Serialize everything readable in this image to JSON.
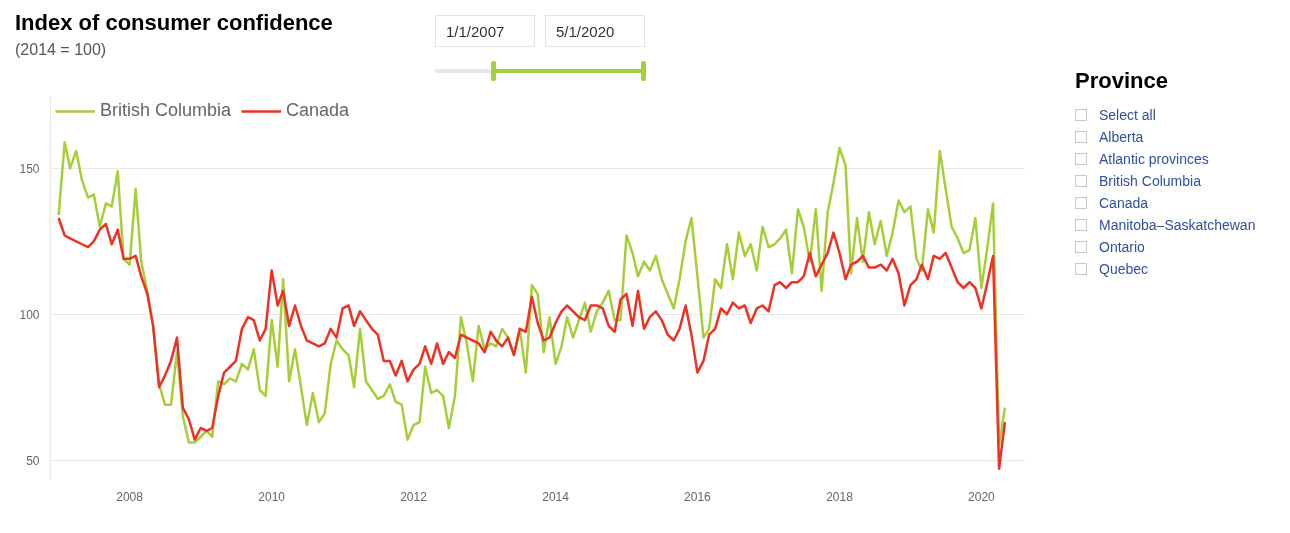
{
  "chart_data": {
    "type": "line",
    "title": "Index of consumer confidence",
    "subtitle": "(2014 = 100)",
    "x": [
      "2007-01",
      "2007-02",
      "2007-03",
      "2007-04",
      "2007-05",
      "2007-06",
      "2007-07",
      "2007-08",
      "2007-09",
      "2007-10",
      "2007-11",
      "2007-12",
      "2008-01",
      "2008-02",
      "2008-03",
      "2008-04",
      "2008-05",
      "2008-06",
      "2008-07",
      "2008-08",
      "2008-09",
      "2008-10",
      "2008-11",
      "2008-12",
      "2009-01",
      "2009-02",
      "2009-03",
      "2009-04",
      "2009-05",
      "2009-06",
      "2009-07",
      "2009-08",
      "2009-09",
      "2009-10",
      "2009-11",
      "2009-12",
      "2010-01",
      "2010-02",
      "2010-03",
      "2010-04",
      "2010-05",
      "2010-06",
      "2010-07",
      "2010-08",
      "2010-09",
      "2010-10",
      "2010-11",
      "2010-12",
      "2011-01",
      "2011-02",
      "2011-03",
      "2011-04",
      "2011-05",
      "2011-06",
      "2011-07",
      "2011-08",
      "2011-09",
      "2011-10",
      "2011-11",
      "2011-12",
      "2012-01",
      "2012-02",
      "2012-03",
      "2012-04",
      "2012-05",
      "2012-06",
      "2012-07",
      "2012-08",
      "2012-09",
      "2012-10",
      "2012-11",
      "2012-12",
      "2013-01",
      "2013-02",
      "2013-03",
      "2013-04",
      "2013-05",
      "2013-06",
      "2013-07",
      "2013-08",
      "2013-09",
      "2013-10",
      "2013-11",
      "2013-12",
      "2014-01",
      "2014-02",
      "2014-03",
      "2014-04",
      "2014-05",
      "2014-06",
      "2014-07",
      "2014-08",
      "2014-09",
      "2014-10",
      "2014-11",
      "2014-12",
      "2015-01",
      "2015-02",
      "2015-03",
      "2015-04",
      "2015-05",
      "2015-06",
      "2015-07",
      "2015-08",
      "2015-09",
      "2015-10",
      "2015-11",
      "2015-12",
      "2016-01",
      "2016-02",
      "2016-03",
      "2016-04",
      "2016-05",
      "2016-06",
      "2016-07",
      "2016-08",
      "2016-09",
      "2016-10",
      "2016-11",
      "2016-12",
      "2017-01",
      "2017-02",
      "2017-03",
      "2017-04",
      "2017-05",
      "2017-06",
      "2017-07",
      "2017-08",
      "2017-09",
      "2017-10",
      "2017-11",
      "2017-12",
      "2018-01",
      "2018-02",
      "2018-03",
      "2018-04",
      "2018-05",
      "2018-06",
      "2018-07",
      "2018-08",
      "2018-09",
      "2018-10",
      "2018-11",
      "2018-12",
      "2019-01",
      "2019-02",
      "2019-03",
      "2019-04",
      "2019-05",
      "2019-06",
      "2019-07",
      "2019-08",
      "2019-09",
      "2019-10",
      "2019-11",
      "2019-12",
      "2020-01",
      "2020-02",
      "2020-03",
      "2020-04",
      "2020-05"
    ],
    "series": [
      {
        "name": "British Columbia",
        "color": "#a6ce39",
        "values": [
          134,
          159,
          150,
          156,
          146,
          140,
          141,
          130,
          138,
          137,
          149,
          119,
          117,
          143,
          118,
          108,
          96,
          76,
          69,
          69,
          87,
          65,
          56,
          56,
          58,
          60,
          58,
          77,
          76,
          78,
          77,
          83,
          81,
          88,
          74,
          72,
          98,
          82,
          112,
          77,
          88,
          75,
          62,
          73,
          63,
          66,
          83,
          91,
          88,
          86,
          75,
          95,
          77,
          74,
          71,
          72,
          76,
          70,
          69,
          57,
          62,
          63,
          82,
          73,
          74,
          72,
          61,
          72,
          99,
          90,
          77,
          96,
          88,
          90,
          89,
          95,
          92,
          86,
          95,
          80,
          110,
          107,
          87,
          99,
          83,
          89,
          99,
          92,
          98,
          104,
          94,
          101,
          104,
          108,
          98,
          98,
          127,
          121,
          113,
          118,
          115,
          120,
          112,
          107,
          102,
          112,
          125,
          133,
          113,
          92,
          95,
          112,
          109,
          124,
          112,
          128,
          120,
          124,
          115,
          130,
          123,
          124,
          126,
          129,
          114,
          136,
          130,
          118,
          136,
          108,
          135,
          145,
          157,
          151,
          114,
          133,
          118,
          135,
          124,
          132,
          120,
          128,
          139,
          135,
          137,
          119,
          115,
          136,
          128,
          156,
          143,
          130,
          126,
          121,
          122,
          133,
          109,
          123,
          138,
          55,
          68
        ]
      },
      {
        "name": "Canada",
        "color": "#ee3124",
        "values": [
          133,
          127,
          126,
          125,
          124,
          123,
          125,
          129,
          131,
          124,
          129,
          119,
          119,
          120,
          113,
          107,
          96,
          75,
          79,
          84,
          92,
          68,
          64,
          57,
          61,
          60,
          61,
          72,
          80,
          82,
          84,
          95,
          99,
          98,
          91,
          95,
          115,
          103,
          108,
          96,
          103,
          96,
          91,
          90,
          89,
          90,
          95,
          92,
          102,
          103,
          96,
          101,
          98,
          95,
          93,
          84,
          84,
          79,
          84,
          77,
          81,
          83,
          89,
          83,
          90,
          83,
          87,
          85,
          93,
          92,
          91,
          90,
          87,
          94,
          91,
          89,
          92,
          86,
          95,
          94,
          106,
          97,
          91,
          92,
          97,
          101,
          103,
          101,
          99,
          98,
          103,
          103,
          102,
          96,
          94,
          105,
          107,
          96,
          108,
          95,
          99,
          101,
          98,
          93,
          91,
          95,
          103,
          93,
          80,
          84,
          93,
          95,
          102,
          100,
          104,
          102,
          103,
          97,
          102,
          103,
          101,
          110,
          111,
          109,
          111,
          111,
          113,
          121,
          113,
          117,
          121,
          128,
          121,
          112,
          117,
          118,
          120,
          116,
          116,
          117,
          115,
          119,
          114,
          103,
          110,
          112,
          117,
          112,
          120,
          119,
          121,
          116,
          111,
          109,
          111,
          109,
          102,
          111,
          120,
          47,
          63
        ]
      }
    ],
    "xlim": [
      "2006-11-20",
      "2020-08-15"
    ],
    "xticks": [
      "2008",
      "2010",
      "2012",
      "2014",
      "2016",
      "2018",
      "2020"
    ],
    "ylim": [
      43,
      175
    ],
    "yticks": [
      50,
      100,
      150
    ],
    "grid": "y",
    "legend": "top left",
    "line_style": "solid",
    "marker": "none",
    "annotations": [
      "1/1/2007",
      "5/1/2020",
      "Province",
      "Select all",
      "Alberta",
      "Atlantic provinces",
      "British Columbia",
      "Canada",
      "Manitoba–Saskatchewan",
      "Ontario",
      "Quebec"
    ]
  }
}
